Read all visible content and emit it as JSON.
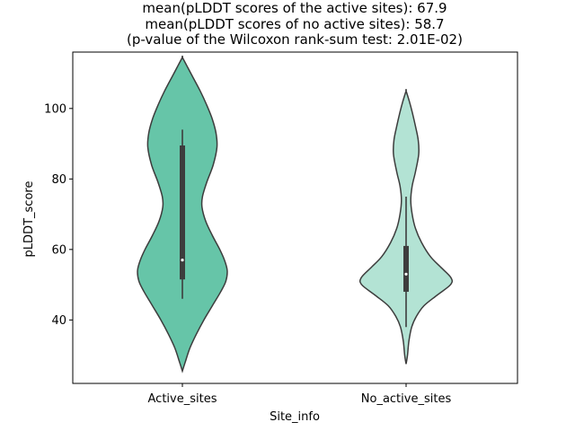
{
  "chart_data": {
    "type": "violin",
    "title_lines": [
      "mean(pLDDT scores of the active sites): 67.9",
      "mean(pLDDT scores of no active sites): 58.7",
      "(p-value of the Wilcoxon rank-sum test: 2.01E-02)"
    ],
    "xlabel": "Site_info",
    "ylabel": "pLDDT_score",
    "categories": [
      "Active_sites",
      "No_active_sites"
    ],
    "ylim": [
      22,
      116
    ],
    "yticks": [
      40,
      60,
      80,
      100
    ],
    "ytick_labels": [
      "40",
      "60",
      "80",
      "100"
    ],
    "colors": {
      "Active_sites": "#66c5a8",
      "No_active_sites": "#b3e3d4",
      "outline": "#3d3d3d",
      "box": "#3d3d3d",
      "median": "#ffffff"
    },
    "series": [
      {
        "name": "Active_sites",
        "y_min": 25.5,
        "y_max": 114.5,
        "density": [
          [
            25.5,
            0.0
          ],
          [
            28,
            0.06
          ],
          [
            32,
            0.16
          ],
          [
            36,
            0.3
          ],
          [
            40,
            0.46
          ],
          [
            44,
            0.64
          ],
          [
            48,
            0.82
          ],
          [
            51,
            0.93
          ],
          [
            54,
            0.96
          ],
          [
            57,
            0.9
          ],
          [
            60,
            0.8
          ],
          [
            64,
            0.64
          ],
          [
            68,
            0.5
          ],
          [
            72,
            0.42
          ],
          [
            75,
            0.43
          ],
          [
            79,
            0.52
          ],
          [
            84,
            0.66
          ],
          [
            89,
            0.74
          ],
          [
            93,
            0.72
          ],
          [
            97,
            0.64
          ],
          [
            101,
            0.52
          ],
          [
            105,
            0.38
          ],
          [
            109,
            0.22
          ],
          [
            112,
            0.1
          ],
          [
            114.5,
            0.0
          ]
        ],
        "whisker_low": 46,
        "q1": 51.5,
        "median": 57,
        "q3": 89.5,
        "whisker_high": 94
      },
      {
        "name": "No_active_sites",
        "y_min": 27.5,
        "y_max": 105,
        "density": [
          [
            27.5,
            0.0
          ],
          [
            30,
            0.03
          ],
          [
            34,
            0.06
          ],
          [
            38,
            0.12
          ],
          [
            41,
            0.22
          ],
          [
            44,
            0.38
          ],
          [
            47,
            0.66
          ],
          [
            50,
            0.95
          ],
          [
            52,
            0.96
          ],
          [
            55,
            0.74
          ],
          [
            58,
            0.52
          ],
          [
            62,
            0.33
          ],
          [
            66,
            0.2
          ],
          [
            70,
            0.13
          ],
          [
            74,
            0.1
          ],
          [
            78,
            0.13
          ],
          [
            82,
            0.2
          ],
          [
            87,
            0.27
          ],
          [
            91,
            0.26
          ],
          [
            95,
            0.2
          ],
          [
            99,
            0.13
          ],
          [
            102,
            0.07
          ],
          [
            105,
            0.0
          ]
        ],
        "whisker_low": 38,
        "q1": 48,
        "median": 53,
        "q3": 61,
        "whisker_high": 75
      }
    ]
  }
}
